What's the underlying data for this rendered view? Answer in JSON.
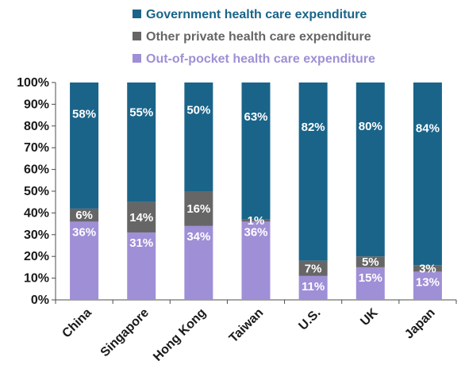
{
  "chart_data": {
    "type": "bar",
    "stacked": true,
    "categories": [
      "China",
      "Singapore",
      "Hong Kong",
      "Taiwan",
      "U.S.",
      "UK",
      "Japan"
    ],
    "series": [
      {
        "name": "Out-of-pocket health care expenditure",
        "values": [
          36,
          31,
          34,
          36,
          11,
          15,
          13
        ],
        "labels": [
          "36%",
          "31%",
          "34%",
          "36%",
          "11%",
          "15%",
          "13%"
        ],
        "color": "#9F8FD6"
      },
      {
        "name": "Other private health care expenditure",
        "values": [
          6,
          14,
          16,
          1,
          7,
          5,
          3
        ],
        "labels": [
          "6%",
          "14%",
          "16%",
          "1%",
          "7%",
          "5%",
          "3%"
        ],
        "color": "#666666"
      },
      {
        "name": "Government health care expenditure",
        "values": [
          58,
          55,
          50,
          63,
          82,
          80,
          84
        ],
        "labels": [
          "58%",
          "55%",
          "50%",
          "63%",
          "82%",
          "80%",
          "84%"
        ],
        "color": "#1A6489"
      }
    ],
    "legend": [
      "Government health care expenditure",
      "Other private health care expenditure",
      "Out-of-pocket health care expenditure"
    ],
    "yticks": [
      "0%",
      "10%",
      "20%",
      "30%",
      "40%",
      "50%",
      "60%",
      "70%",
      "80%",
      "90%",
      "100%"
    ],
    "ylim": [
      0,
      100
    ],
    "title": "",
    "xlabel": "",
    "ylabel": "",
    "grid": false,
    "legend_position": "top"
  }
}
